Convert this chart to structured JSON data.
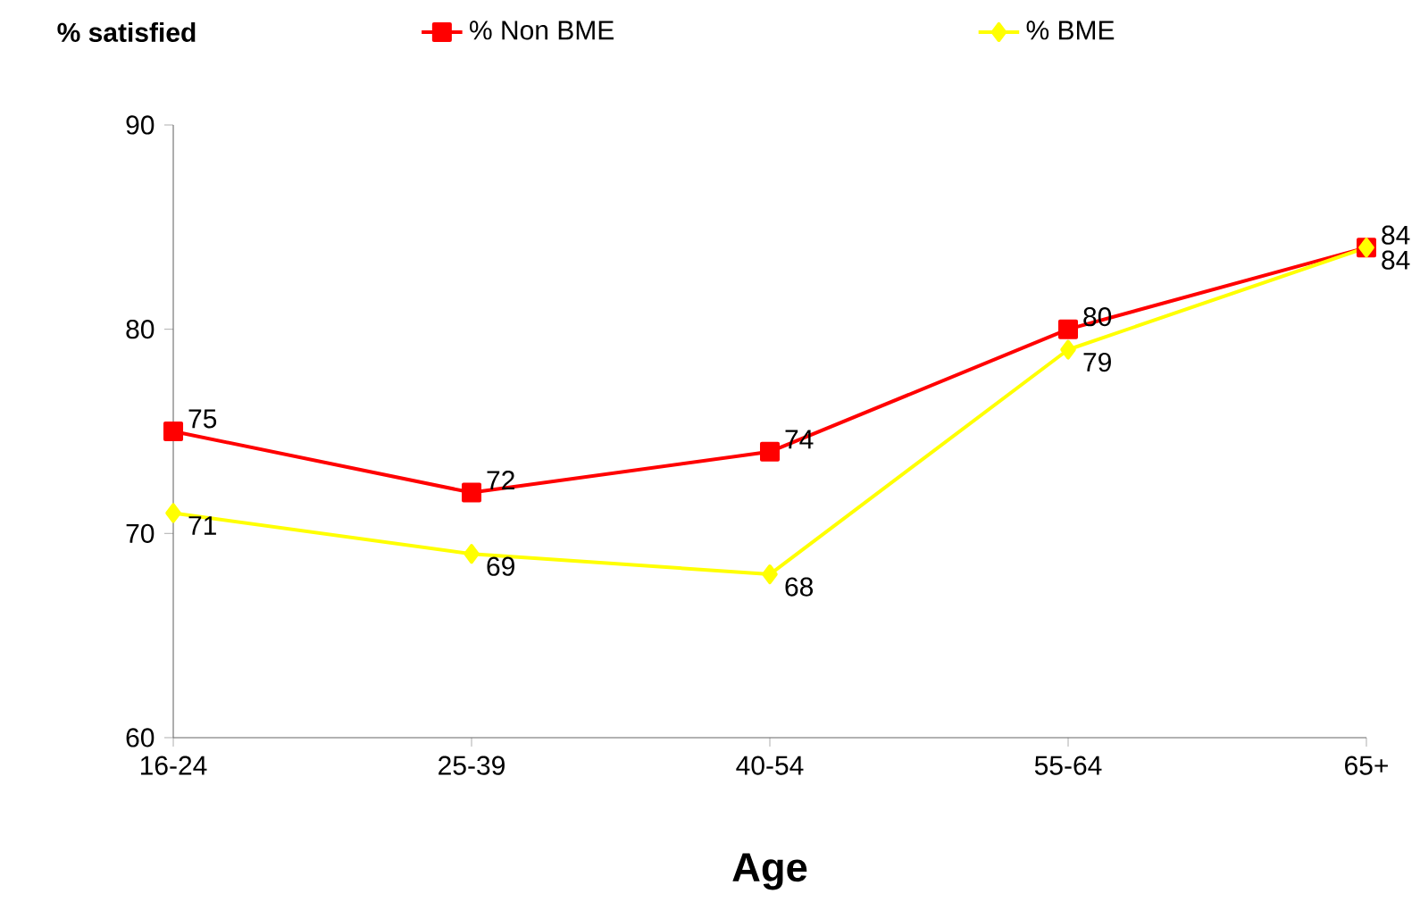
{
  "chart_data": {
    "type": "line",
    "xlabel": "Age",
    "ylabel": "% satisfied",
    "categories": [
      "16-24",
      "25-39",
      "40-54",
      "55-64",
      "65+"
    ],
    "series": [
      {
        "name": "% Non BME",
        "color": "#ff0000",
        "marker": "square",
        "values": [
          75,
          72,
          74,
          80,
          84
        ]
      },
      {
        "name": "% BME",
        "color": "#ffff00",
        "marker": "diamond",
        "values": [
          71,
          69,
          68,
          79,
          84
        ]
      }
    ],
    "ylim": [
      60,
      90
    ],
    "yticks": [
      60,
      70,
      80,
      90
    ],
    "data_labels": true,
    "legend": "top",
    "grid": false,
    "line_style": "solid"
  }
}
